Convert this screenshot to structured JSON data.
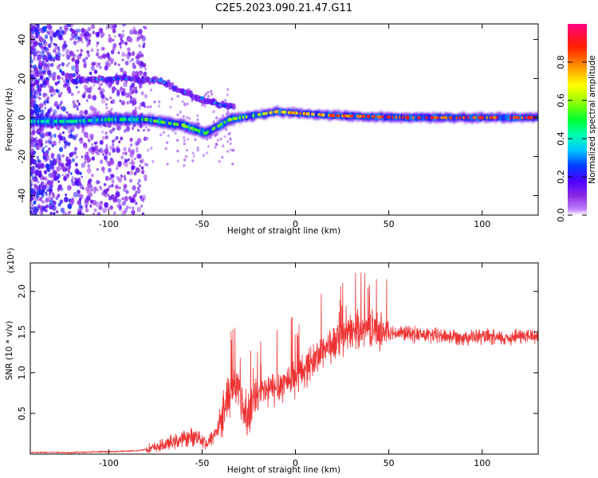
{
  "title": "C2E5.2023.090.21.47.G11",
  "chart_data": [
    {
      "type": "heatmap",
      "xlabel": "Height of straight line (km)",
      "ylabel": "Frequency (Hz)",
      "xlim": [
        -142,
        130
      ],
      "ylim": [
        -50,
        48
      ],
      "xticks": [
        -100,
        -50,
        0,
        50,
        100
      ],
      "yticks": [
        -40,
        -20,
        0,
        20,
        40
      ],
      "colorbar": {
        "label": "Normalized spectral amplitude",
        "range": [
          0.0,
          1.0
        ],
        "ticks": [
          0.0,
          0.2,
          0.4,
          0.6,
          0.8
        ],
        "colormap": "rainbow (purple-blue-cyan-green-yellow-orange-red-magenta)"
      },
      "features": [
        {
          "x": -120,
          "y": -2,
          "value": 0.45
        },
        {
          "x": -100,
          "y": -1,
          "value": 0.5
        },
        {
          "x": -80,
          "y": -1,
          "value": 0.55
        },
        {
          "x": -60,
          "y": -4,
          "value": 0.6
        },
        {
          "x": -48,
          "y": -8,
          "value": 0.55
        },
        {
          "x": -35,
          "y": -1,
          "value": 0.6
        },
        {
          "x": -10,
          "y": 3,
          "value": 0.75
        },
        {
          "x": 20,
          "y": 1,
          "value": 0.85
        },
        {
          "x": 60,
          "y": 0,
          "value": 0.9
        },
        {
          "x": 100,
          "y": 0,
          "value": 0.9
        },
        {
          "x": 125,
          "y": 0,
          "value": 0.9
        },
        {
          "x": -95,
          "y": 20,
          "value": 0.25
        },
        {
          "x": -72,
          "y": 19,
          "value": 0.3
        },
        {
          "x": -50,
          "y": 10,
          "value": 0.3
        },
        {
          "x": -38,
          "y": 6,
          "value": 0.25
        }
      ]
    },
    {
      "type": "line",
      "xlabel": "Height of straight line (km)",
      "ylabel": "SNR (10 * v/v)",
      "yscale_label": "(x10⁴)",
      "xlim": [
        -142,
        130
      ],
      "ylim": [
        0,
        2.35
      ],
      "xticks": [
        -100,
        -50,
        0,
        50,
        100
      ],
      "yticks": [
        0.5,
        1.0,
        1.5,
        2.0
      ],
      "color": "#ee3333",
      "series": [
        {
          "x": [
            -142,
            -120,
            -100,
            -85,
            -75,
            -65,
            -58,
            -52,
            -47,
            -42,
            -38,
            -34,
            -30,
            -27,
            -24,
            -20,
            -15,
            -10,
            -5,
            0,
            5,
            10,
            15,
            20,
            25,
            30,
            35,
            40,
            45,
            50,
            60,
            70,
            80,
            90,
            100,
            110,
            120,
            130
          ],
          "values": [
            0.02,
            0.02,
            0.03,
            0.04,
            0.08,
            0.15,
            0.2,
            0.22,
            0.12,
            0.3,
            0.6,
            0.85,
            0.8,
            0.45,
            0.6,
            0.72,
            0.78,
            0.82,
            0.9,
            0.95,
            1.05,
            1.15,
            1.3,
            1.35,
            1.42,
            1.5,
            1.55,
            1.55,
            1.52,
            1.5,
            1.48,
            1.46,
            1.45,
            1.44,
            1.44,
            1.42,
            1.45,
            1.45
          ]
        }
      ]
    }
  ]
}
